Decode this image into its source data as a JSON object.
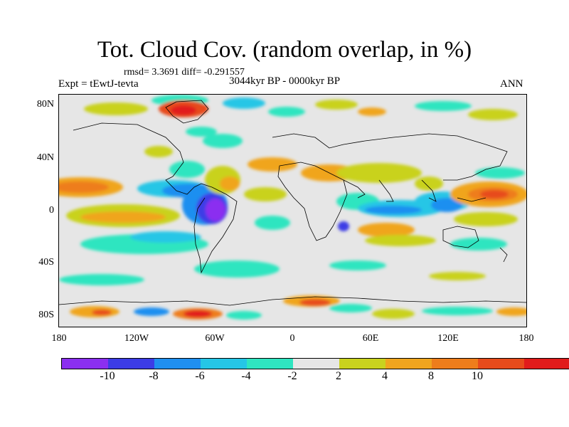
{
  "title": "Tot. Cloud Cov. (random overlap, in %)",
  "stats": "rmsd= 3.3691 diff= -0.291557",
  "experiment": "Expt = tEwtJ-tevta",
  "period": "3044kyr BP - 0000kyr BP",
  "season": "ANN",
  "latitude_ticks": [
    "80N",
    "40N",
    "0",
    "40S",
    "80S"
  ],
  "longitude_ticks": [
    "180",
    "120W",
    "60W",
    "0",
    "60E",
    "120E",
    "180"
  ],
  "colorbar": {
    "labels": [
      "-10",
      "-8",
      "-6",
      "-4",
      "-2",
      "2",
      "4",
      "8",
      "10"
    ],
    "colors": [
      "#8b2ff0",
      "#3c3ce6",
      "#1f8ff0",
      "#25c6e6",
      "#2fe5c0",
      "#e6e6e6",
      "#c9d21e",
      "#f0a51e",
      "#ee7d1b",
      "#e74b1b",
      "#e11b1b"
    ]
  }
}
